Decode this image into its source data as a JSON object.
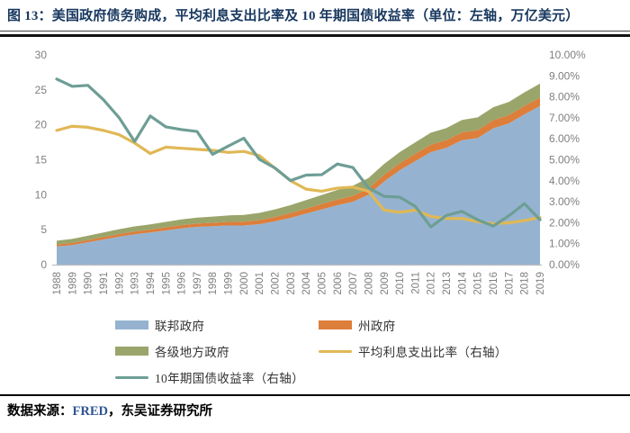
{
  "figure": {
    "title": "图 13：美国政府债务购成，平均利息支出比率及 10 年期国债收益率（单位：左轴，万亿美元）",
    "footer": {
      "prefix": "数据来源：",
      "source": "FRED",
      "suffix": "，东吴证券研究所"
    }
  },
  "colors": {
    "title_navy": "#17375e",
    "axis_text_gray": "#7f7f7f",
    "baseline_gray": "#bfbfbf",
    "federal_blue": "#95b3d0",
    "state_orange": "#dd7e3b",
    "local_olive": "#9aa56b",
    "interest_yellow": "#e0b855",
    "treasury_teal": "#6d9e95",
    "footer_source_blue": "#2e5496"
  },
  "chart_data": {
    "type": "area",
    "stacked": true,
    "grid": false,
    "legend_position": "bottom",
    "x": [
      1988,
      1989,
      1990,
      1991,
      1992,
      1993,
      1994,
      1995,
      1996,
      1997,
      1998,
      1999,
      2000,
      2001,
      2002,
      2003,
      2004,
      2005,
      2006,
      2007,
      2008,
      2009,
      2010,
      2011,
      2012,
      2013,
      2014,
      2015,
      2016,
      2017,
      2018,
      2019
    ],
    "left_axis": {
      "min": 0,
      "max": 30,
      "ticks": [
        "0",
        "5",
        "10",
        "15",
        "20",
        "25",
        "30"
      ],
      "tick_values": [
        0,
        5,
        10,
        15,
        20,
        25,
        30
      ]
    },
    "right_axis": {
      "min": 0,
      "max": 10,
      "ticks": [
        "0.00%",
        "1.00%",
        "2.00%",
        "3.00%",
        "4.00%",
        "5.00%",
        "6.00%",
        "7.00%",
        "8.00%",
        "9.00%",
        "10.00%"
      ],
      "tick_values": [
        0,
        1,
        2,
        3,
        4,
        5,
        6,
        7,
        8,
        9,
        10
      ]
    },
    "series": [
      {
        "id": "federal",
        "label": "联邦政府",
        "kind": "area",
        "axis": "left",
        "color": "#95b3d0",
        "values": [
          2.6,
          2.8,
          3.2,
          3.6,
          4.0,
          4.35,
          4.6,
          4.9,
          5.2,
          5.4,
          5.5,
          5.6,
          5.6,
          5.8,
          6.2,
          6.7,
          7.3,
          7.9,
          8.5,
          9.0,
          10.0,
          11.9,
          13.5,
          14.8,
          16.1,
          16.7,
          17.8,
          18.1,
          19.5,
          20.2,
          21.5,
          22.7
        ]
      },
      {
        "id": "state",
        "label": "州政府",
        "kind": "area",
        "axis": "left",
        "color": "#dd7e3b",
        "values": [
          0.28,
          0.3,
          0.32,
          0.35,
          0.37,
          0.39,
          0.41,
          0.43,
          0.45,
          0.47,
          0.49,
          0.52,
          0.55,
          0.58,
          0.62,
          0.67,
          0.72,
          0.77,
          0.81,
          0.85,
          0.9,
          0.95,
          1.0,
          1.05,
          1.08,
          1.1,
          1.12,
          1.14,
          1.16,
          1.18,
          1.19,
          1.2
        ]
      },
      {
        "id": "local",
        "label": "各级地方政府",
        "kind": "area",
        "axis": "left",
        "color": "#9aa56b",
        "values": [
          0.55,
          0.58,
          0.62,
          0.66,
          0.7,
          0.73,
          0.76,
          0.79,
          0.82,
          0.85,
          0.88,
          0.92,
          0.97,
          1.02,
          1.08,
          1.15,
          1.22,
          1.3,
          1.37,
          1.44,
          1.5,
          1.55,
          1.6,
          1.65,
          1.7,
          1.74,
          1.78,
          1.82,
          1.86,
          1.9,
          1.95,
          2.0
        ]
      },
      {
        "id": "avg-interest",
        "label": "平均利息支出比率（右轴）",
        "kind": "line",
        "axis": "right",
        "color": "#e0b855",
        "values": [
          6.4,
          6.6,
          6.55,
          6.4,
          6.2,
          5.8,
          5.3,
          5.6,
          5.55,
          5.5,
          5.45,
          5.35,
          5.4,
          5.2,
          4.6,
          4.0,
          3.6,
          3.5,
          3.65,
          3.7,
          3.5,
          2.6,
          2.5,
          2.6,
          2.3,
          2.2,
          2.2,
          2.05,
          1.95,
          2.0,
          2.1,
          2.25
        ]
      },
      {
        "id": "treasury-10y",
        "label": "10年期国债收益率（右轴）",
        "kind": "line",
        "axis": "right",
        "color": "#6d9e95",
        "values": [
          8.85,
          8.5,
          8.55,
          7.86,
          7.01,
          5.87,
          7.09,
          6.57,
          6.44,
          6.35,
          5.26,
          5.65,
          6.03,
          5.02,
          4.61,
          4.01,
          4.27,
          4.29,
          4.8,
          4.63,
          3.66,
          3.26,
          3.22,
          2.78,
          1.8,
          2.35,
          2.54,
          2.14,
          1.84,
          2.33,
          2.91,
          2.14
        ]
      }
    ],
    "legend_order": [
      "federal",
      "state",
      "local",
      "avg-interest",
      "treasury-10y"
    ]
  }
}
